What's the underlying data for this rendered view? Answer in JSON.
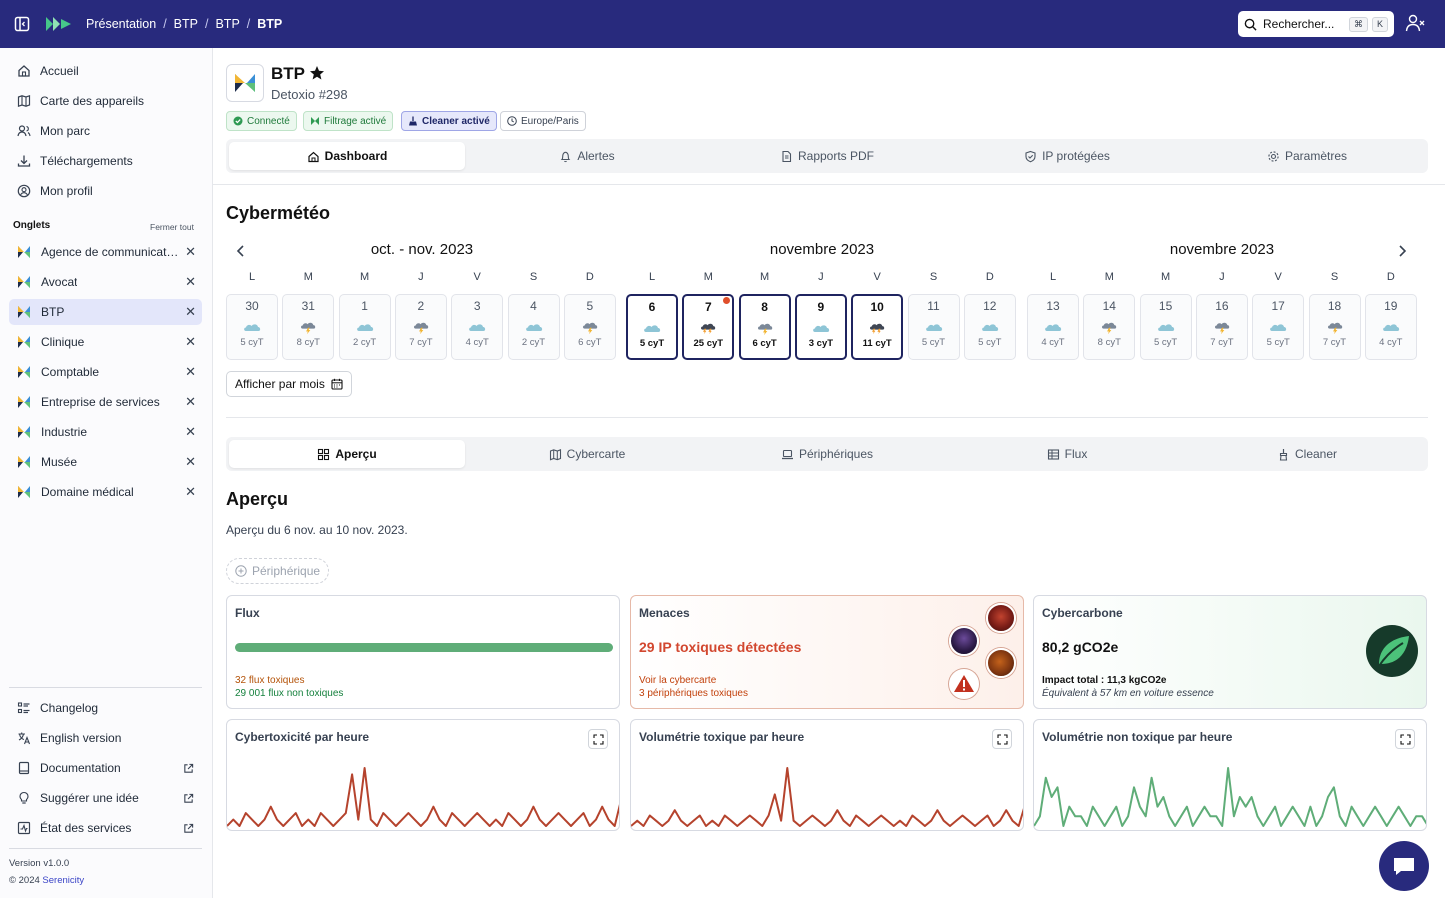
{
  "breadcrumb": [
    "Présentation",
    "BTP",
    "BTP",
    "BTP"
  ],
  "search": {
    "placeholder": "Rechercher...",
    "shortcut": [
      "⌘",
      "K"
    ]
  },
  "sidebar": {
    "nav": [
      {
        "label": "Accueil",
        "icon": "home-icon"
      },
      {
        "label": "Carte des appareils",
        "icon": "map-icon"
      },
      {
        "label": "Mon parc",
        "icon": "users-icon"
      },
      {
        "label": "Téléchargements",
        "icon": "download-icon"
      },
      {
        "label": "Mon profil",
        "icon": "user-circle-icon"
      }
    ],
    "tabs_header": "Onglets",
    "close_all": "Fermer tout",
    "tabs": [
      {
        "label": "Agence de communicat…"
      },
      {
        "label": "Avocat"
      },
      {
        "label": "BTP",
        "active": true
      },
      {
        "label": "Clinique"
      },
      {
        "label": "Comptable"
      },
      {
        "label": "Entreprise de services"
      },
      {
        "label": "Industrie"
      },
      {
        "label": "Musée"
      },
      {
        "label": "Domaine médical"
      }
    ],
    "footer": [
      {
        "label": "Changelog",
        "icon": "list-icon",
        "external": false
      },
      {
        "label": "English version",
        "icon": "translate-icon",
        "external": false
      },
      {
        "label": "Documentation",
        "icon": "book-icon",
        "external": true
      },
      {
        "label": "Suggérer une idée",
        "icon": "lightbulb-icon",
        "external": true
      },
      {
        "label": "État des services",
        "icon": "status-icon",
        "external": true
      }
    ],
    "version": "Version v1.0.0",
    "copyright_prefix": "© 2024 ",
    "brand": "Serenicity"
  },
  "device": {
    "title": "BTP",
    "subtitle": "Detoxio #298",
    "badges": {
      "connected": "Connecté",
      "filter": "Filtrage activé",
      "cleaner": "Cleaner activé",
      "timezone": "Europe/Paris"
    }
  },
  "main_tabs": [
    {
      "label": "Dashboard",
      "icon": "home-icon",
      "active": true
    },
    {
      "label": "Alertes",
      "icon": "bell-icon"
    },
    {
      "label": "Rapports PDF",
      "icon": "file-icon"
    },
    {
      "label": "IP protégées",
      "icon": "shield-icon"
    },
    {
      "label": "Paramètres",
      "icon": "gear-icon"
    }
  ],
  "weather": {
    "title": "Cybermétéo",
    "months": [
      "oct. - nov. 2023",
      "novembre 2023",
      "novembre 2023"
    ],
    "dow": [
      "L",
      "M",
      "M",
      "J",
      "V",
      "S",
      "D"
    ],
    "weeks": [
      [
        {
          "d": "30",
          "v": "5 cyT",
          "w": "cloud"
        },
        {
          "d": "31",
          "v": "8 cyT",
          "w": "storm"
        },
        {
          "d": "1",
          "v": "2 cyT",
          "w": "cloud"
        },
        {
          "d": "2",
          "v": "7 cyT",
          "w": "storm"
        },
        {
          "d": "3",
          "v": "4 cyT",
          "w": "cloud"
        },
        {
          "d": "4",
          "v": "2 cyT",
          "w": "cloud"
        },
        {
          "d": "5",
          "v": "6 cyT",
          "w": "storm"
        }
      ],
      [
        {
          "d": "6",
          "v": "5 cyT",
          "w": "cloud",
          "sel": true
        },
        {
          "d": "7",
          "v": "25 cyT",
          "w": "heavy",
          "sel": true,
          "alert": true
        },
        {
          "d": "8",
          "v": "6 cyT",
          "w": "storm",
          "sel": true
        },
        {
          "d": "9",
          "v": "3 cyT",
          "w": "cloud",
          "sel": true
        },
        {
          "d": "10",
          "v": "11 cyT",
          "w": "heavy",
          "sel": true
        },
        {
          "d": "11",
          "v": "5 cyT",
          "w": "cloud"
        },
        {
          "d": "12",
          "v": "5 cyT",
          "w": "cloud"
        }
      ],
      [
        {
          "d": "13",
          "v": "4 cyT",
          "w": "cloud"
        },
        {
          "d": "14",
          "v": "8 cyT",
          "w": "storm"
        },
        {
          "d": "15",
          "v": "5 cyT",
          "w": "cloud"
        },
        {
          "d": "16",
          "v": "7 cyT",
          "w": "storm"
        },
        {
          "d": "17",
          "v": "5 cyT",
          "w": "cloud"
        },
        {
          "d": "18",
          "v": "7 cyT",
          "w": "storm"
        },
        {
          "d": "19",
          "v": "4 cyT",
          "w": "cloud"
        }
      ]
    ],
    "month_view_button": "Afficher par mois"
  },
  "sub_tabs": [
    {
      "label": "Aperçu",
      "icon": "grid-icon",
      "active": true
    },
    {
      "label": "Cybercarte",
      "icon": "map-icon"
    },
    {
      "label": "Périphériques",
      "icon": "laptop-icon"
    },
    {
      "label": "Flux",
      "icon": "table-icon"
    },
    {
      "label": "Cleaner",
      "icon": "broom-icon"
    }
  ],
  "overview": {
    "title": "Aperçu",
    "subtitle": "Aperçu du 6 nov. au 10 nov. 2023.",
    "device_filter": "Périphérique"
  },
  "cards": {
    "flux": {
      "title": "Flux",
      "toxic": "32 flux toxiques",
      "clean": "29 001 flux non toxiques",
      "clean_fraction": 0.999
    },
    "threats": {
      "title": "Menaces",
      "main": "29 IP toxiques détectées",
      "link": "Voir la cybercarte",
      "devices": "3 périphériques toxiques"
    },
    "carbon": {
      "title": "Cybercarbone",
      "value": "80,2 gCO2e",
      "total": "Impact total : 11,3 kgCO2e",
      "equiv": "Équivalent à 57 km en voiture essence"
    }
  },
  "charts": [
    {
      "title": "Cybertoxicité par heure",
      "color": "#b5432d"
    },
    {
      "title": "Volumétrie toxique par heure",
      "color": "#b5432d"
    },
    {
      "title": "Volumétrie non toxique par heure",
      "color": "#5fad78"
    }
  ],
  "chart_data": [
    {
      "type": "line",
      "series": [
        {
          "values": [
            0,
            1,
            0,
            2,
            1,
            0,
            1,
            3,
            1,
            0,
            1,
            2,
            0,
            1,
            0,
            2,
            1,
            0,
            1,
            2,
            8,
            1,
            9,
            1,
            0,
            2,
            1,
            0,
            1,
            2,
            1,
            0,
            1,
            3,
            1,
            0,
            2,
            1,
            0,
            1,
            2,
            1,
            0,
            1,
            0,
            2,
            1,
            0,
            1,
            3,
            1,
            0,
            1,
            2,
            1,
            0,
            1,
            2,
            0,
            1,
            3,
            1,
            0,
            4
          ]
        }
      ]
    },
    {
      "type": "line",
      "series": [
        {
          "values": [
            0,
            1,
            0,
            2,
            1,
            0,
            1,
            3,
            1,
            0,
            1,
            2,
            0,
            1,
            0,
            2,
            1,
            0,
            1,
            2,
            1,
            0,
            2,
            6,
            1,
            11,
            1,
            0,
            1,
            2,
            1,
            0,
            1,
            3,
            1,
            0,
            2,
            1,
            0,
            1,
            2,
            1,
            0,
            1,
            0,
            2,
            1,
            0,
            1,
            3,
            1,
            0,
            1,
            2,
            1,
            0,
            1,
            2,
            0,
            1,
            3,
            1,
            0,
            4
          ]
        }
      ]
    },
    {
      "type": "line",
      "series": [
        {
          "values": [
            0,
            1,
            5,
            3,
            4,
            0,
            2,
            1,
            1,
            0,
            2,
            1,
            0,
            1,
            2,
            0,
            1,
            4,
            2,
            1,
            5,
            2,
            3,
            1,
            0,
            1,
            2,
            0,
            1,
            2,
            1,
            1,
            0,
            6,
            1,
            3,
            2,
            3,
            1,
            0,
            1,
            2,
            0,
            1,
            2,
            1,
            0,
            2,
            0,
            1,
            3,
            4,
            1,
            0,
            2,
            1,
            0,
            1,
            2,
            1,
            0,
            1,
            2,
            1,
            0,
            1,
            1,
            0
          ]
        }
      ]
    }
  ]
}
